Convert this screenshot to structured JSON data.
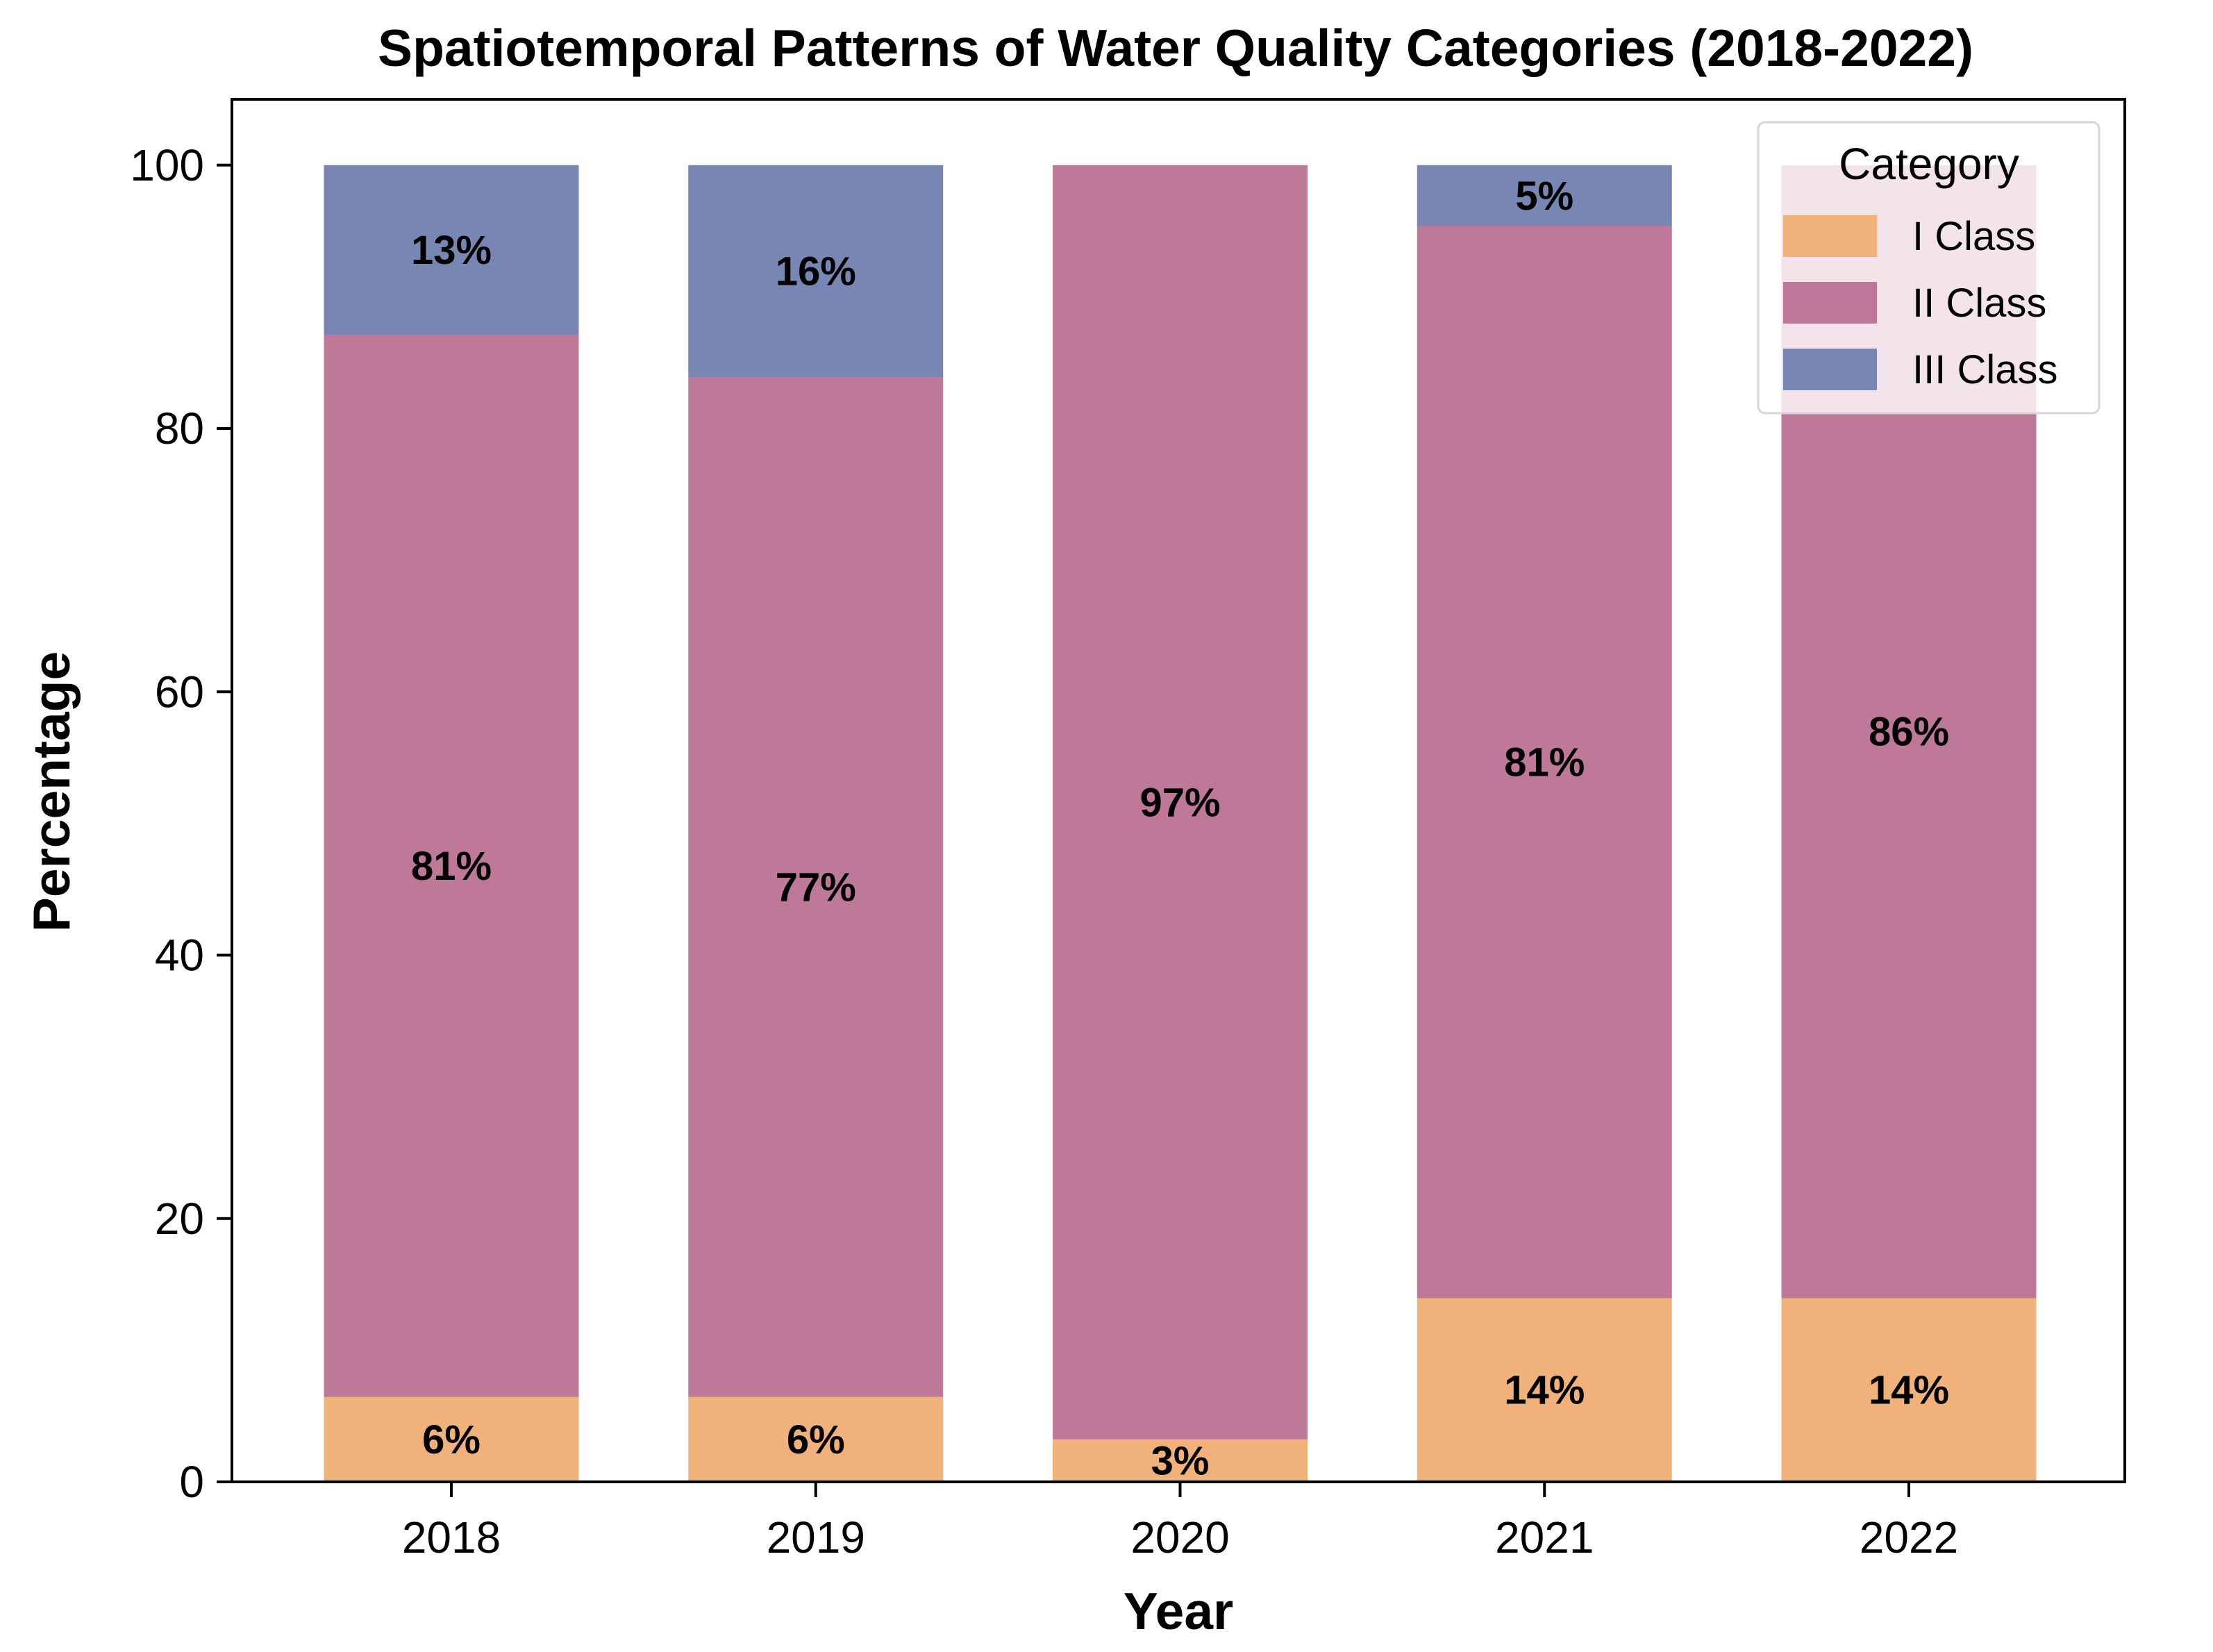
{
  "chart_data": {
    "type": "bar",
    "stacked": true,
    "title": "Spatiotemporal Patterns of Water Quality Categories (2018-2022)",
    "xlabel": "Year",
    "ylabel": "Percentage",
    "ylim": [
      0,
      105
    ],
    "yticks": [
      0,
      20,
      40,
      60,
      80,
      100
    ],
    "categories": [
      "2018",
      "2019",
      "2020",
      "2021",
      "2022"
    ],
    "series": [
      {
        "name": "I Class",
        "color": "#f0b27a",
        "values": [
          6.45,
          6.45,
          3.23,
          13.95,
          13.95
        ],
        "labels": [
          "6%",
          "6%",
          "3%",
          "14%",
          "14%"
        ]
      },
      {
        "name": "II Class",
        "color": "#be7898",
        "values": [
          80.65,
          77.42,
          96.77,
          81.4,
          86.05
        ],
        "labels": [
          "81%",
          "77%",
          "97%",
          "81%",
          "86%"
        ]
      },
      {
        "name": "III Class",
        "color": "#7886b4",
        "values": [
          12.9,
          16.13,
          0,
          4.65,
          0
        ],
        "labels": [
          "13%",
          "16%",
          "",
          "5%",
          ""
        ]
      }
    ],
    "legend": {
      "title": "Category",
      "position": "upper-right"
    }
  }
}
